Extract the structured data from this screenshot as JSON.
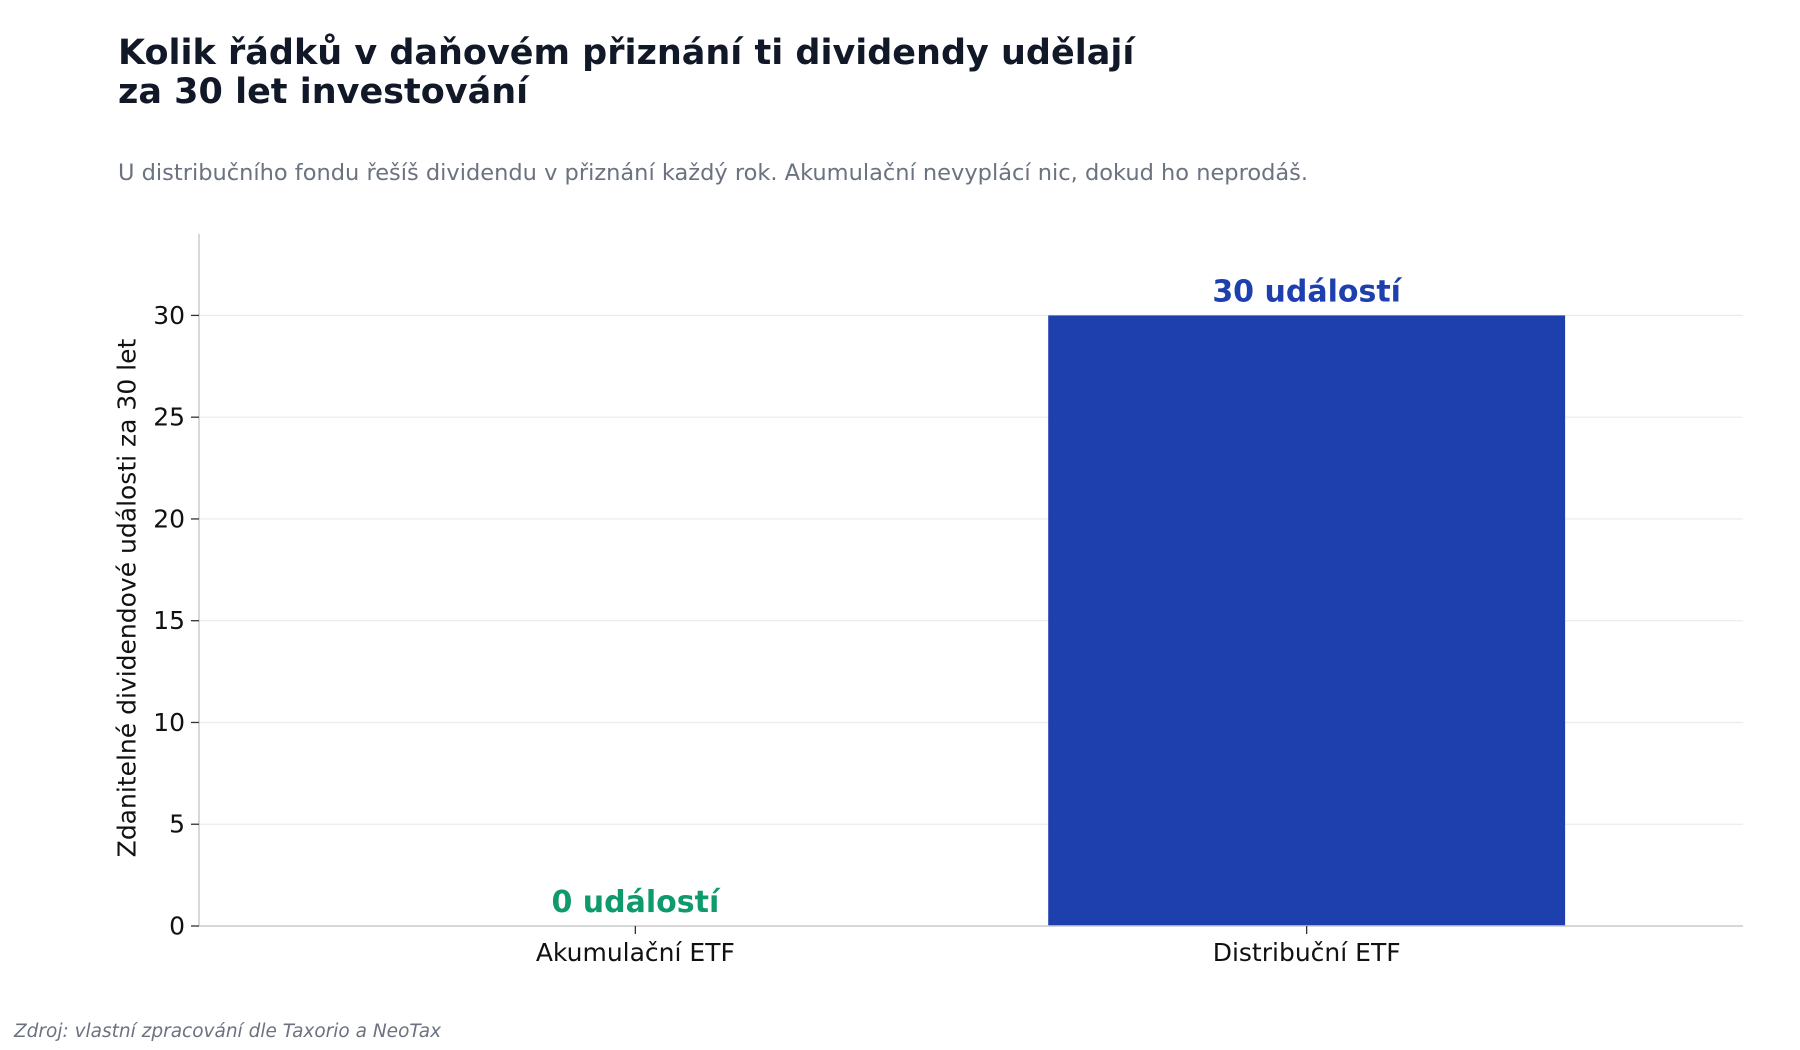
{
  "title_lines": [
    "Kolik řádků v daňovém přiznání ti dividendy udělají",
    "za 30 let investování"
  ],
  "subtitle": "U distribučního fondu řešíš dividendu v přiznání každý rok. Akumulační nevyplácí nic, dokud ho neprodáš.",
  "source": "Zdroj: vlastní zpracování dle Taxorio a NeoTax",
  "chart_data": {
    "type": "bar",
    "title": "Kolik řádků v daňovém přiznání ti dividendy udělají za 30 let investování",
    "subtitle": "U distribučního fondu řešíš dividendu v přiznání každý rok. Akumulační nevyplácí nic, dokud ho neprodáš.",
    "categories": [
      "Akumulační ETF",
      "Distribuční ETF"
    ],
    "values": [
      0,
      30
    ],
    "data_labels": [
      "0 událostí",
      "30 událostí"
    ],
    "colors": [
      "#0e9a6c",
      "#1e40ae"
    ],
    "xlabel": "",
    "ylabel": "Zdanitelné dividendové události za 30 let",
    "ylim": [
      0,
      34
    ],
    "yticks": [
      0,
      5,
      10,
      15,
      20,
      25,
      30
    ],
    "grid": "horizontal",
    "legend": "none"
  }
}
